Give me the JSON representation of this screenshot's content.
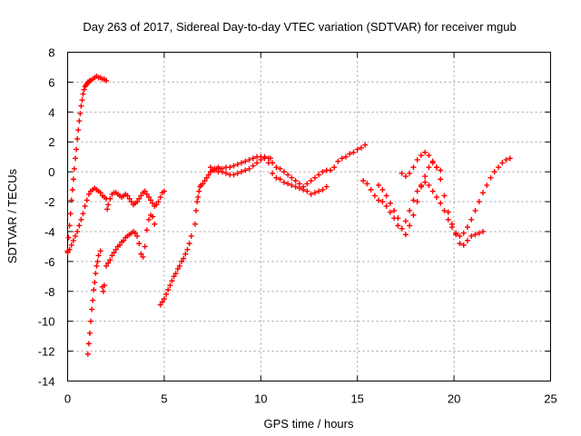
{
  "chart_data": {
    "type": "scatter",
    "title": "Day 263 of 2017, Sidereal Day-to-day VTEC variation (SDTVAR) for receiver mgub",
    "xlabel": "GPS time / hours",
    "ylabel": "SDTVAR / TECUs",
    "xlim": [
      0,
      25
    ],
    "ylim": [
      -14,
      8
    ],
    "xticks": [
      0,
      5,
      10,
      15,
      20,
      25
    ],
    "yticks": [
      -14,
      -12,
      -10,
      -8,
      -6,
      -4,
      -2,
      0,
      2,
      4,
      6,
      8
    ],
    "grid": true,
    "marker": "+",
    "color": "#ff0000",
    "series": [
      {
        "x": [
          0.0,
          0.05,
          0.1,
          0.15,
          0.2,
          0.25,
          0.3,
          0.35,
          0.4,
          0.45,
          0.5,
          0.55,
          0.6,
          0.65,
          0.7,
          0.75,
          0.8,
          0.85,
          0.9,
          0.95,
          1.0,
          1.05,
          1.1,
          1.15,
          1.2,
          1.3,
          1.4,
          1.5,
          1.6,
          1.7,
          1.8,
          1.9,
          2.0
        ],
        "y": [
          -5.3,
          -4.4,
          -3.6,
          -2.8,
          -1.9,
          -1.2,
          -0.5,
          0.2,
          0.9,
          1.5,
          2.2,
          2.8,
          3.4,
          3.9,
          4.4,
          4.8,
          5.2,
          5.5,
          5.7,
          5.8,
          5.9,
          6.0,
          6.0,
          6.1,
          6.1,
          6.2,
          6.3,
          6.4,
          6.3,
          6.3,
          6.2,
          6.2,
          6.1
        ]
      },
      {
        "x": [
          0.0,
          0.1,
          0.2,
          0.3,
          0.4,
          0.5,
          0.6,
          0.7,
          0.8,
          0.9,
          1.0,
          1.1,
          1.2,
          1.3,
          1.4,
          1.5,
          1.6,
          1.7,
          1.8,
          1.9,
          2.0,
          2.05,
          2.1,
          2.2,
          2.3,
          2.4,
          2.5,
          2.6,
          2.7,
          2.8,
          2.9,
          3.0,
          3.1,
          3.2,
          3.3,
          3.4,
          3.5,
          3.6,
          3.7,
          3.8,
          3.9,
          4.0,
          4.1,
          4.2,
          4.3,
          4.4,
          4.5,
          4.6,
          4.7,
          4.8,
          4.9,
          5.0
        ],
        "y": [
          -5.4,
          -5.2,
          -4.9,
          -4.6,
          -4.3,
          -4.0,
          -3.6,
          -3.2,
          -2.8,
          -2.3,
          -1.9,
          -1.5,
          -1.3,
          -1.2,
          -1.1,
          -1.2,
          -1.3,
          -1.4,
          -1.6,
          -1.7,
          -1.8,
          -2.5,
          -2.2,
          -1.8,
          -1.5,
          -1.4,
          -1.4,
          -1.5,
          -1.6,
          -1.7,
          -1.6,
          -1.5,
          -1.6,
          -1.8,
          -2.0,
          -2.2,
          -2.1,
          -2.0,
          -1.8,
          -1.6,
          -1.4,
          -1.3,
          -1.5,
          -1.7,
          -1.9,
          -2.1,
          -2.3,
          -2.2,
          -2.0,
          -1.7,
          -1.4,
          -1.3
        ]
      },
      {
        "x": [
          2.0,
          2.1,
          2.2,
          2.3,
          2.4,
          2.5,
          2.6,
          2.7,
          2.8,
          2.9,
          3.0,
          3.1,
          3.2,
          3.3,
          3.4,
          3.5,
          3.6,
          3.7,
          3.8,
          3.9,
          4.0,
          4.1,
          4.2,
          4.3,
          4.4,
          4.5
        ],
        "y": [
          -6.3,
          -6.1,
          -5.9,
          -5.6,
          -5.4,
          -5.2,
          -5.0,
          -4.9,
          -4.7,
          -4.6,
          -4.4,
          -4.3,
          -4.2,
          -4.1,
          -4.0,
          -4.1,
          -4.3,
          -4.8,
          -5.5,
          -5.7,
          -5.0,
          -3.9,
          -3.2,
          -2.9,
          -3.0,
          -3.5
        ]
      },
      {
        "x": [
          1.05,
          1.1,
          1.15,
          1.2,
          1.25,
          1.3,
          1.35,
          1.4,
          1.45,
          1.5,
          1.55,
          1.6,
          1.7,
          1.8,
          1.85,
          1.9
        ],
        "y": [
          -12.2,
          -11.5,
          -10.8,
          -10.0,
          -9.2,
          -8.6,
          -7.9,
          -7.4,
          -6.8,
          -6.3,
          -6.0,
          -5.6,
          -5.3,
          -7.7,
          -8.0,
          -7.6
        ]
      },
      {
        "x": [
          4.8,
          4.9,
          5.0,
          5.1,
          5.2,
          5.3,
          5.4,
          5.5,
          5.6,
          5.7,
          5.8,
          5.9,
          6.0,
          6.1,
          6.2,
          6.3,
          6.4
        ],
        "y": [
          -8.9,
          -8.7,
          -8.5,
          -8.2,
          -7.9,
          -7.6,
          -7.3,
          -7.0,
          -6.8,
          -6.5,
          -6.3,
          -6.0,
          -5.8,
          -5.5,
          -5.2,
          -4.8,
          -4.3
        ]
      },
      {
        "x": [
          6.6,
          6.65,
          6.7,
          6.75,
          6.8,
          6.85,
          6.9,
          7.0,
          7.1,
          7.2,
          7.3,
          7.4,
          7.5,
          7.6,
          7.7,
          7.8,
          7.9,
          8.0,
          8.2,
          8.4,
          8.6,
          8.8,
          9.0,
          9.2,
          9.4,
          9.6,
          9.8,
          10.0,
          10.2,
          10.4,
          10.5,
          10.6,
          10.8,
          11.0,
          11.2,
          11.4,
          11.6,
          11.8,
          12.0,
          12.2,
          12.4,
          12.6,
          12.8,
          13.0,
          13.2,
          13.4,
          13.6,
          13.8,
          14.0,
          14.2,
          14.4,
          14.6,
          14.8,
          15.0,
          15.2,
          15.4
        ],
        "y": [
          -3.5,
          -2.6,
          -2.0,
          -1.7,
          -1.3,
          -1.0,
          -0.9,
          -0.8,
          -0.6,
          -0.4,
          -0.2,
          0.0,
          0.1,
          0.2,
          0.2,
          0.3,
          0.2,
          0.2,
          0.3,
          0.3,
          0.4,
          0.5,
          0.6,
          0.7,
          0.8,
          0.9,
          1.0,
          1.0,
          1.0,
          0.9,
          0.9,
          0.6,
          0.3,
          0.2,
          0.0,
          -0.2,
          -0.4,
          -0.6,
          -0.8,
          -1.0,
          -0.8,
          -0.6,
          -0.4,
          -0.2,
          0.0,
          0.1,
          0.1,
          0.3,
          0.7,
          0.9,
          1.0,
          1.2,
          1.3,
          1.5,
          1.6,
          1.8
        ]
      },
      {
        "x": [
          7.4,
          7.6,
          7.8,
          8.0,
          8.2,
          8.4,
          8.6,
          8.8,
          9.0,
          9.2,
          9.4,
          9.6,
          9.8,
          10.0,
          10.2,
          10.4,
          10.6,
          10.8,
          11.0,
          11.2,
          11.4,
          11.6,
          11.8,
          12.0,
          12.2,
          12.4,
          12.6,
          12.8,
          13.0,
          13.2,
          13.4
        ],
        "y": [
          0.3,
          0.1,
          0.0,
          0.0,
          -0.1,
          -0.2,
          -0.2,
          -0.1,
          0.0,
          0.1,
          0.2,
          0.4,
          0.6,
          0.8,
          0.9,
          0.6,
          -0.1,
          -0.4,
          -0.5,
          -0.7,
          -0.8,
          -0.9,
          -1.0,
          -1.1,
          -1.2,
          -1.3,
          -1.5,
          -1.4,
          -1.3,
          -1.2,
          -1.0
        ]
      },
      {
        "x": [
          15.3,
          15.5,
          15.7,
          15.9,
          16.1,
          16.3,
          16.5,
          16.7,
          16.9,
          17.1,
          17.3,
          17.5,
          17.7,
          17.9,
          18.1,
          18.3,
          18.5,
          18.7,
          18.9,
          19.1,
          19.3,
          19.5,
          19.7,
          19.9,
          20.1,
          20.3,
          20.5,
          20.7,
          20.9,
          21.1,
          21.3,
          21.5,
          21.7,
          21.9,
          22.1,
          22.3,
          22.5,
          22.7,
          22.9
        ],
        "y": [
          -0.6,
          -0.8,
          -1.2,
          -1.6,
          -1.9,
          -2.0,
          -2.3,
          -2.7,
          -3.1,
          -3.6,
          -3.8,
          -3.3,
          -2.6,
          -1.9,
          -1.3,
          -0.9,
          -0.7,
          -0.9,
          -1.3,
          -1.7,
          -2.1,
          -2.6,
          -3.2,
          -3.7,
          -4.2,
          -4.3,
          -4.1,
          -3.7,
          -3.2,
          -2.6,
          -2.0,
          -1.4,
          -0.9,
          -0.4,
          0.0,
          0.3,
          0.6,
          0.8,
          0.9
        ]
      },
      {
        "x": [
          16.1,
          16.3,
          16.5,
          16.7,
          16.9,
          17.1,
          17.3,
          17.5,
          17.7,
          17.9,
          18.1,
          18.3,
          18.5,
          18.7,
          18.9,
          19.1,
          19.3,
          19.5,
          19.7,
          19.9,
          20.1,
          20.3,
          20.5,
          20.7,
          20.9,
          21.1,
          21.3,
          21.5
        ],
        "y": [
          -0.9,
          -1.2,
          -1.6,
          -2.1,
          -2.6,
          -3.1,
          -3.8,
          -4.2,
          -3.6,
          -2.9,
          -2.0,
          -1.0,
          -0.3,
          0.3,
          0.6,
          0.3,
          -0.5,
          -1.6,
          -2.7,
          -3.5,
          -4.1,
          -4.8,
          -4.9,
          -4.6,
          -4.3,
          -4.2,
          -4.1,
          -4.0
        ]
      },
      {
        "x": [
          17.3,
          17.5,
          17.7,
          17.9,
          18.1,
          18.3,
          18.5,
          18.7,
          18.9,
          19.1,
          19.3
        ],
        "y": [
          -0.1,
          -0.3,
          -0.1,
          0.3,
          0.8,
          1.1,
          1.3,
          1.1,
          0.7,
          0.3,
          0.1
        ]
      }
    ]
  }
}
